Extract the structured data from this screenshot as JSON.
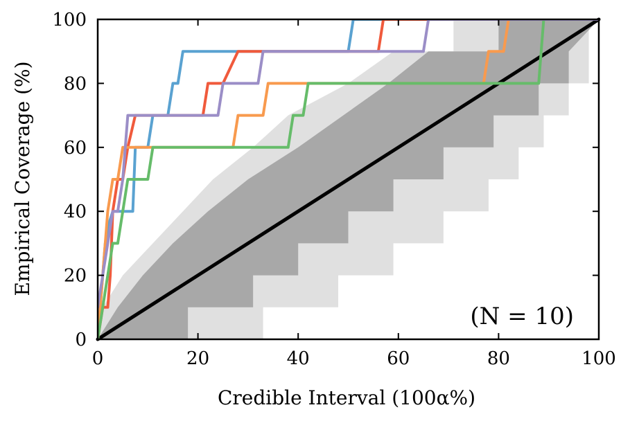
{
  "chart_data": {
    "type": "line",
    "xlabel": "Credible Interval (100α%)",
    "ylabel": "Empirical Coverage (%)",
    "annotation": "(N = 10)",
    "xlim": [
      0,
      100
    ],
    "ylim": [
      0,
      100
    ],
    "xticks": [
      0,
      20,
      40,
      60,
      80,
      100
    ],
    "yticks": [
      0,
      20,
      40,
      60,
      80,
      100
    ],
    "xtick_labels": [
      "0",
      "20",
      "40",
      "60",
      "80",
      "100"
    ],
    "ytick_labels": [
      "0",
      "20",
      "40",
      "60",
      "80",
      "100"
    ],
    "grid": false,
    "bands": [
      {
        "level": "outer",
        "color": "#e0e0e0",
        "lower": [
          [
            0,
            0
          ],
          [
            33,
            0
          ],
          [
            33,
            10
          ],
          [
            48,
            10
          ],
          [
            48,
            20
          ],
          [
            59,
            20
          ],
          [
            59,
            30
          ],
          [
            69,
            30
          ],
          [
            69,
            40
          ],
          [
            78,
            40
          ],
          [
            78,
            50
          ],
          [
            84,
            50
          ],
          [
            84,
            60
          ],
          [
            89,
            60
          ],
          [
            89,
            70
          ],
          [
            94,
            70
          ],
          [
            94,
            80
          ],
          [
            98,
            80
          ],
          [
            98,
            100
          ],
          [
            100,
            100
          ]
        ],
        "upper": [
          [
            0,
            0
          ],
          [
            1,
            10
          ],
          [
            5,
            20
          ],
          [
            11,
            30
          ],
          [
            17,
            40
          ],
          [
            23,
            50
          ],
          [
            31,
            60
          ],
          [
            38,
            70
          ],
          [
            50,
            80
          ],
          [
            59,
            90
          ],
          [
            71,
            90
          ],
          [
            71,
            100
          ],
          [
            100,
            100
          ]
        ]
      },
      {
        "level": "inner",
        "color": "#a8a8a8",
        "lower": [
          [
            0,
            0
          ],
          [
            18,
            0
          ],
          [
            18,
            10
          ],
          [
            31,
            10
          ],
          [
            31,
            20
          ],
          [
            40,
            20
          ],
          [
            40,
            30
          ],
          [
            50,
            30
          ],
          [
            50,
            40
          ],
          [
            59,
            40
          ],
          [
            59,
            50
          ],
          [
            69,
            50
          ],
          [
            69,
            60
          ],
          [
            79,
            60
          ],
          [
            79,
            70
          ],
          [
            88,
            70
          ],
          [
            88,
            80
          ],
          [
            94,
            80
          ],
          [
            94,
            90
          ],
          [
            100,
            100
          ]
        ],
        "upper": [
          [
            0,
            0
          ],
          [
            4,
            10
          ],
          [
            9,
            20
          ],
          [
            15,
            30
          ],
          [
            22,
            40
          ],
          [
            30,
            50
          ],
          [
            40,
            60
          ],
          [
            49,
            70
          ],
          [
            58,
            80
          ],
          [
            66,
            90
          ],
          [
            80,
            90
          ],
          [
            80,
            100
          ],
          [
            100,
            100
          ]
        ]
      }
    ],
    "reference_line": {
      "x": [
        0,
        100
      ],
      "y": [
        0,
        100
      ],
      "color": "#000000"
    },
    "series": [
      {
        "color": "#5aa2d1",
        "x": [
          0,
          0.5,
          1,
          1.5,
          2,
          3,
          3.5,
          7,
          7.5,
          10,
          11,
          14,
          15,
          16,
          17,
          19,
          50,
          51,
          100
        ],
        "y": [
          0,
          10,
          20,
          30,
          35,
          40,
          40,
          40,
          60,
          60,
          70,
          70,
          80,
          80,
          90,
          90,
          90,
          100,
          100
        ]
      },
      {
        "color": "#f05a3c",
        "x": [
          0,
          1,
          2,
          2.5,
          3,
          4,
          5,
          6,
          7.5,
          8,
          21,
          22,
          24,
          25,
          28,
          29,
          32,
          33,
          56,
          57,
          100
        ],
        "y": [
          0,
          10,
          10,
          20,
          40,
          50,
          50,
          60,
          70,
          70,
          70,
          80,
          80,
          80,
          90,
          90,
          90,
          90,
          90,
          100,
          100
        ]
      },
      {
        "color": "#f89a4e",
        "x": [
          0,
          1,
          2,
          3,
          4,
          5,
          5.5,
          27,
          28,
          33,
          34,
          77,
          78,
          81,
          82,
          100
        ],
        "y": [
          0,
          20,
          40,
          50,
          50,
          60,
          60,
          60,
          70,
          70,
          80,
          80,
          90,
          90,
          100,
          100
        ]
      },
      {
        "color": "#66bc6a",
        "x": [
          0,
          1,
          2,
          3,
          4,
          5,
          6,
          10,
          11,
          38,
          39,
          41,
          42,
          88,
          89,
          100
        ],
        "y": [
          0,
          10,
          20,
          30,
          30,
          40,
          50,
          50,
          60,
          60,
          70,
          70,
          80,
          80,
          100,
          100
        ]
      },
      {
        "color": "#9b8ec7",
        "x": [
          0,
          0.5,
          1,
          2,
          3,
          4,
          5,
          6,
          7,
          24,
          25,
          32,
          33,
          65,
          66,
          100
        ],
        "y": [
          10,
          15,
          20,
          30,
          40,
          40,
          50,
          70,
          70,
          70,
          80,
          80,
          90,
          90,
          100,
          100
        ]
      }
    ]
  }
}
